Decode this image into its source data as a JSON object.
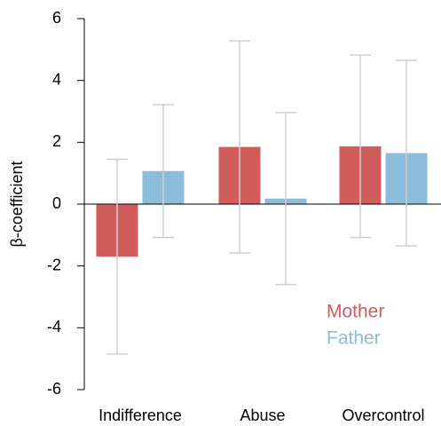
{
  "chart_data": {
    "type": "bar",
    "ylabel": "β-coefficient",
    "categories": [
      "Indifference",
      "Abuse",
      "Overcontrol"
    ],
    "series": [
      {
        "name": "Mother",
        "color": "#d05c5c",
        "values": [
          -1.7,
          1.85,
          1.87
        ],
        "errors": [
          3.15,
          3.43,
          2.95
        ]
      },
      {
        "name": "Father",
        "color": "#8bbcd8",
        "values": [
          1.07,
          0.18,
          1.65
        ],
        "errors": [
          2.15,
          2.78,
          3.0
        ]
      }
    ],
    "ylim": [
      -6,
      6
    ],
    "yticks": [
      -6,
      -4,
      -2,
      0,
      2,
      4,
      6
    ],
    "legend": "lower right"
  }
}
